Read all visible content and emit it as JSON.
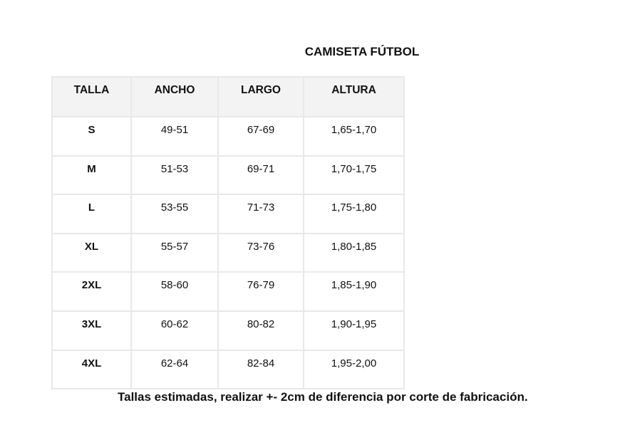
{
  "title": "CAMISETA FÚTBOL",
  "table": {
    "headers": [
      "TALLA",
      "ANCHO",
      "LARGO",
      "ALTURA"
    ],
    "rows": [
      [
        "S",
        "49-51",
        "67-69",
        "1,65-1,70"
      ],
      [
        "M",
        "51-53",
        "69-71",
        "1,70-1,75"
      ],
      [
        "L",
        "53-55",
        "71-73",
        "1,75-1,80"
      ],
      [
        "XL",
        "55-57",
        "73-76",
        "1,80-1,85"
      ],
      [
        "2XL",
        "58-60",
        "76-79",
        "1,85-1,90"
      ],
      [
        "3XL",
        "60-62",
        "80-82",
        "1,90-1,95"
      ],
      [
        "4XL",
        "62-64",
        "82-84",
        "1,95-2,00"
      ]
    ]
  },
  "note": "Tallas estimadas, realizar +- 2cm de diferencia por corte de fabricación."
}
